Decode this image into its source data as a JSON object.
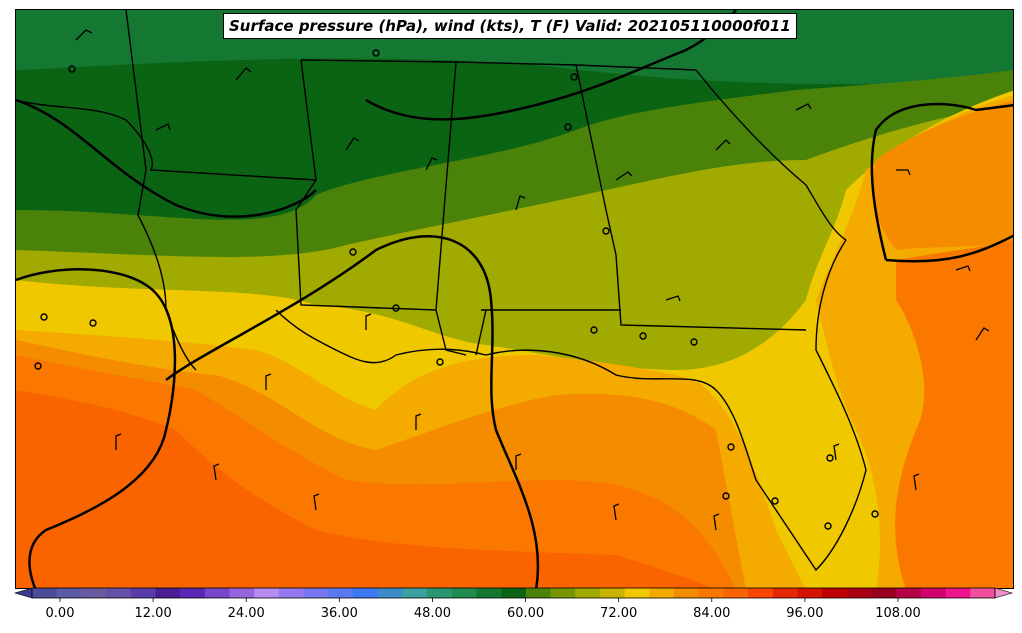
{
  "title": "Surface pressure (hPa), wind (kts), T (F) Valid: 202105110000f011",
  "colorbar": {
    "tick_labels": [
      "0.00",
      "12.00",
      "24.00",
      "36.00",
      "48.00",
      "60.00",
      "72.00",
      "84.00",
      "96.00",
      "108.00"
    ],
    "tick_values": [
      0,
      12,
      24,
      36,
      48,
      60,
      72,
      84,
      96,
      108
    ],
    "min": -3,
    "max": 120,
    "step": 3,
    "extend": "both",
    "colors": [
      "#3c3c8c",
      "#4b4b99",
      "#5a5aa6",
      "#6a5aa0",
      "#6450a8",
      "#5a3ca8",
      "#4b1e96",
      "#5a28b4",
      "#7846c8",
      "#9664dc",
      "#b48cf0",
      "#9678f0",
      "#7878f0",
      "#5a78f0",
      "#3c78f0",
      "#3c8cc8",
      "#3ca0a0",
      "#28966e",
      "#1e8c50",
      "#147832",
      "#0a6414",
      "#4b820a",
      "#789600",
      "#a0aa00",
      "#c8b400",
      "#f0c800",
      "#f5aa00",
      "#f58c00",
      "#fa7800",
      "#fa6400",
      "#fa4600",
      "#e62800",
      "#d21400",
      "#be0000",
      "#aa0014",
      "#96001e",
      "#b40046",
      "#d2006e",
      "#f0148c",
      "#f0509c",
      "#f08cc8"
    ]
  },
  "map": {
    "temperature_field": "T (F)",
    "pressure_units": "hPa",
    "wind_units": "kts"
  }
}
